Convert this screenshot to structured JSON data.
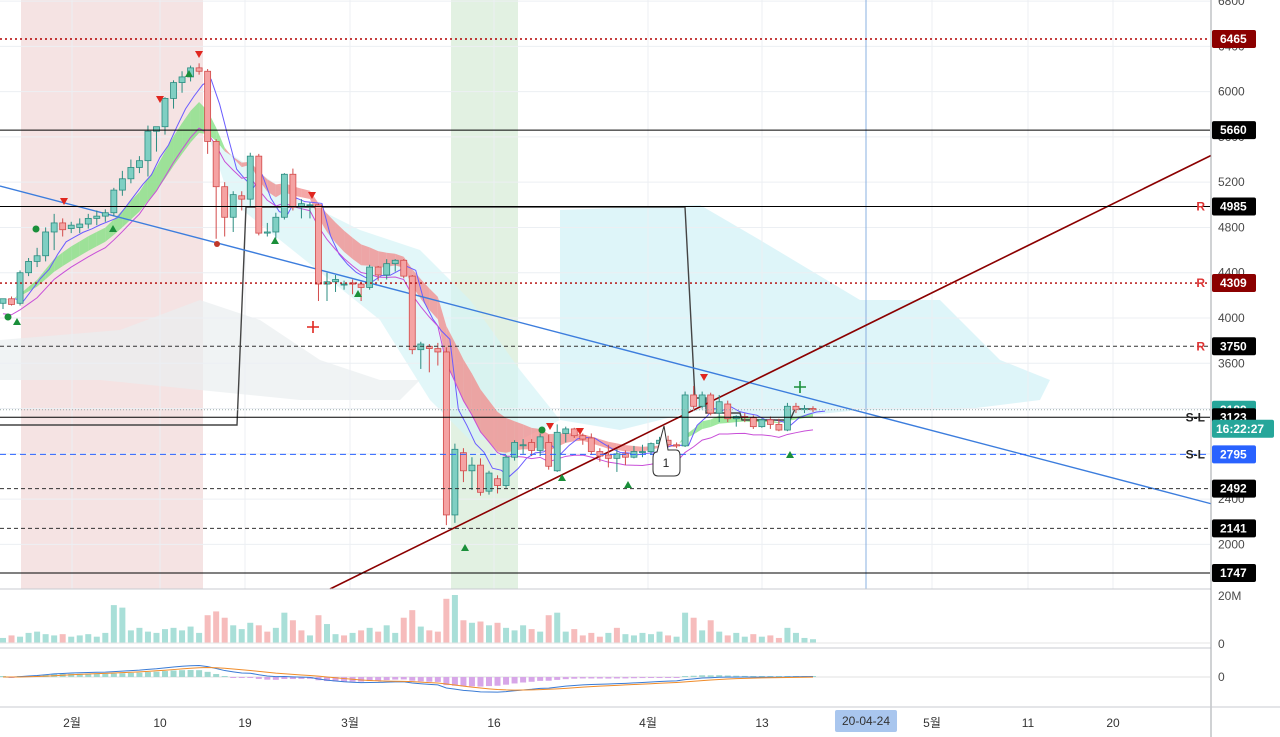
{
  "chart_data": {
    "type": "candlestick",
    "price_axis": {
      "ylim": [
        1800,
        6700
      ],
      "ticks": [
        "6800",
        "6400",
        "6000",
        "5600",
        "5200",
        "4800",
        "4400",
        "4000",
        "3600",
        "3200",
        "2800",
        "2400",
        "2000"
      ]
    },
    "volume_axis": {
      "ticks": [
        "20M",
        "0"
      ]
    },
    "macd_axis": {
      "ticks": [
        "0"
      ]
    },
    "x_labels": [
      "2월",
      "10",
      "19",
      "3월",
      "16",
      "4월",
      "13",
      "5월",
      "11",
      "20"
    ],
    "cursor_date": "20-04-24",
    "last_price": "3189",
    "countdown": "16:22:27",
    "price_tags": [
      {
        "label": "6465",
        "value": 6465,
        "color": "#8b0000",
        "line": "dotted-red"
      },
      {
        "label": "5660",
        "value": 5660,
        "color": "#000000",
        "line": "solid"
      },
      {
        "label": "4985",
        "value": 4985,
        "color": "#000000",
        "line": "solid",
        "marker": "R"
      },
      {
        "label": "4309",
        "value": 4309,
        "color": "#8b0000",
        "line": "dotted-red",
        "marker": "R"
      },
      {
        "label": "3750",
        "value": 3750,
        "color": "#000000",
        "line": "dashed",
        "marker": "R"
      },
      {
        "label": "3189",
        "value": 3189,
        "color": "#26a69a",
        "line": "dotted-gray"
      },
      {
        "label": "3123",
        "value": 3123,
        "color": "#000000",
        "line": "solid",
        "marker": "S-L"
      },
      {
        "label": "2795",
        "value": 2795,
        "color": "#2962ff",
        "line": "dashed-blue",
        "marker": "S-L"
      },
      {
        "label": "2492",
        "value": 2492,
        "color": "#000000",
        "line": "dashed"
      },
      {
        "label": "2141",
        "value": 2141,
        "color": "#000000",
        "line": "dashed"
      },
      {
        "label": "1747",
        "value": 1747,
        "color": "#000000",
        "line": "solid"
      }
    ],
    "candles": [
      [
        4130,
        4170,
        4080,
        4170
      ],
      [
        4170,
        4190,
        4110,
        4120
      ],
      [
        4130,
        4420,
        4110,
        4400
      ],
      [
        4400,
        4530,
        4370,
        4500
      ],
      [
        4500,
        4620,
        4450,
        4550
      ],
      [
        4550,
        4800,
        4500,
        4760
      ],
      [
        4760,
        4920,
        4600,
        4840
      ],
      [
        4840,
        4880,
        4720,
        4780
      ],
      [
        4790,
        4850,
        4750,
        4820
      ],
      [
        4800,
        4880,
        4750,
        4830
      ],
      [
        4830,
        4920,
        4790,
        4880
      ],
      [
        4880,
        4950,
        4820,
        4900
      ],
      [
        4900,
        4960,
        4850,
        4930
      ],
      [
        4930,
        5150,
        4900,
        5130
      ],
      [
        5130,
        5300,
        5080,
        5230
      ],
      [
        5230,
        5400,
        5190,
        5330
      ],
      [
        5330,
        5430,
        5280,
        5390
      ],
      [
        5390,
        5700,
        5250,
        5650
      ],
      [
        5650,
        5690,
        5470,
        5690
      ],
      [
        5690,
        5950,
        5620,
        5940
      ],
      [
        5940,
        6100,
        5850,
        6080
      ],
      [
        6080,
        6180,
        5990,
        6130
      ],
      [
        6130,
        6230,
        6090,
        6210
      ],
      [
        6210,
        6250,
        6150,
        6180
      ],
      [
        6180,
        6200,
        5450,
        5560
      ],
      [
        5560,
        5580,
        4700,
        5160
      ],
      [
        5160,
        5200,
        4720,
        4890
      ],
      [
        4890,
        5120,
        4760,
        5090
      ],
      [
        5080,
        5120,
        4950,
        5050
      ],
      [
        5050,
        5460,
        4990,
        5430
      ],
      [
        5430,
        5450,
        4730,
        4750
      ],
      [
        4750,
        4840,
        4720,
        4760
      ],
      [
        4760,
        4930,
        4700,
        4890
      ],
      [
        4890,
        5280,
        4870,
        5270
      ],
      [
        5270,
        5320,
        4950,
        4980
      ],
      [
        4980,
        5050,
        4880,
        5010
      ],
      [
        5000,
        5020,
        4880,
        5000
      ],
      [
        5000,
        5010,
        4150,
        4300
      ],
      [
        4300,
        4400,
        4150,
        4320
      ],
      [
        4320,
        4380,
        4230,
        4340
      ],
      [
        4300,
        4330,
        4250,
        4300
      ],
      [
        4310,
        4340,
        4210,
        4300
      ],
      [
        4300,
        4320,
        4150,
        4270
      ],
      [
        4270,
        4470,
        4250,
        4450
      ],
      [
        4450,
        4460,
        4330,
        4380
      ],
      [
        4380,
        4520,
        4340,
        4480
      ],
      [
        4480,
        4520,
        4410,
        4510
      ],
      [
        4510,
        4520,
        4350,
        4370
      ],
      [
        4370,
        4380,
        3680,
        3720
      ],
      [
        3720,
        3790,
        3550,
        3770
      ],
      [
        3750,
        3770,
        3520,
        3730
      ],
      [
        3730,
        3780,
        3580,
        3700
      ],
      [
        3700,
        3740,
        2170,
        2260
      ],
      [
        2260,
        2890,
        2190,
        2840
      ],
      [
        2810,
        2850,
        2550,
        2650
      ],
      [
        2650,
        2770,
        2480,
        2700
      ],
      [
        2700,
        2760,
        2430,
        2460
      ],
      [
        2470,
        2650,
        2440,
        2630
      ],
      [
        2580,
        2610,
        2450,
        2520
      ],
      [
        2520,
        2790,
        2500,
        2770
      ],
      [
        2770,
        2920,
        2740,
        2900
      ],
      [
        2880,
        2930,
        2800,
        2880
      ],
      [
        2900,
        2930,
        2780,
        2830
      ],
      [
        2830,
        2980,
        2780,
        2950
      ],
      [
        2900,
        2970,
        2660,
        2690
      ],
      [
        2650,
        3060,
        2640,
        2990
      ],
      [
        2980,
        3040,
        2900,
        3020
      ],
      [
        3020,
        3030,
        2940,
        2960
      ],
      [
        2960,
        2980,
        2880,
        2930
      ],
      [
        2940,
        2980,
        2790,
        2820
      ],
      [
        2820,
        2850,
        2730,
        2780
      ],
      [
        2790,
        2880,
        2680,
        2760
      ],
      [
        2760,
        2840,
        2640,
        2800
      ],
      [
        2800,
        2830,
        2700,
        2770
      ],
      [
        2770,
        2870,
        2760,
        2820
      ],
      [
        2820,
        2880,
        2770,
        2820
      ],
      [
        2820,
        2900,
        2790,
        2890
      ],
      [
        2890,
        2950,
        2840,
        2920
      ],
      [
        2920,
        2960,
        2860,
        2880
      ],
      [
        2880,
        2900,
        2850,
        2870
      ],
      [
        2870,
        3350,
        2860,
        3320
      ],
      [
        3320,
        3400,
        3180,
        3220
      ],
      [
        3220,
        3350,
        3200,
        3320
      ],
      [
        3320,
        3340,
        3140,
        3160
      ],
      [
        3160,
        3320,
        3080,
        3260
      ],
      [
        3240,
        3270,
        3080,
        3110
      ],
      [
        3110,
        3140,
        3040,
        3130
      ],
      [
        3130,
        3160,
        3080,
        3120
      ],
      [
        3120,
        3140,
        3020,
        3040
      ],
      [
        3040,
        3110,
        3030,
        3100
      ],
      [
        3100,
        3130,
        3020,
        3060
      ],
      [
        3060,
        3110,
        3000,
        3010
      ],
      [
        3010,
        3250,
        3000,
        3220
      ],
      [
        3220,
        3250,
        3160,
        3190
      ],
      [
        3190,
        3230,
        3160,
        3200
      ],
      [
        3200,
        3220,
        3170,
        3189
      ]
    ],
    "volume": [
      [
        4,
        1
      ],
      [
        6,
        0
      ],
      [
        5,
        1
      ],
      [
        8,
        1
      ],
      [
        9,
        1
      ],
      [
        7,
        1
      ],
      [
        6,
        1
      ],
      [
        7,
        0
      ],
      [
        5,
        1
      ],
      [
        6,
        1
      ],
      [
        7,
        1
      ],
      [
        5,
        1
      ],
      [
        8,
        1
      ],
      [
        30,
        1
      ],
      [
        28,
        1
      ],
      [
        10,
        1
      ],
      [
        12,
        1
      ],
      [
        9,
        1
      ],
      [
        8,
        1
      ],
      [
        11,
        1
      ],
      [
        12,
        1
      ],
      [
        10,
        1
      ],
      [
        13,
        1
      ],
      [
        8,
        1
      ],
      [
        22,
        0
      ],
      [
        25,
        0
      ],
      [
        20,
        0
      ],
      [
        14,
        1
      ],
      [
        11,
        1
      ],
      [
        16,
        1
      ],
      [
        14,
        0
      ],
      [
        9,
        0
      ],
      [
        12,
        1
      ],
      [
        24,
        1
      ],
      [
        18,
        0
      ],
      [
        10,
        0
      ],
      [
        6,
        1
      ],
      [
        22,
        0
      ],
      [
        15,
        1
      ],
      [
        7,
        1
      ],
      [
        6,
        0
      ],
      [
        8,
        1
      ],
      [
        10,
        0
      ],
      [
        12,
        1
      ],
      [
        9,
        0
      ],
      [
        14,
        1
      ],
      [
        8,
        1
      ],
      [
        20,
        0
      ],
      [
        26,
        0
      ],
      [
        13,
        1
      ],
      [
        10,
        0
      ],
      [
        9,
        0
      ],
      [
        35,
        0
      ],
      [
        38,
        1
      ],
      [
        18,
        0
      ],
      [
        16,
        1
      ],
      [
        17,
        0
      ],
      [
        14,
        1
      ],
      [
        16,
        0
      ],
      [
        12,
        1
      ],
      [
        10,
        1
      ],
      [
        14,
        1
      ],
      [
        11,
        0
      ],
      [
        9,
        1
      ],
      [
        22,
        0
      ],
      [
        24,
        1
      ],
      [
        9,
        1
      ],
      [
        11,
        0
      ],
      [
        6,
        0
      ],
      [
        8,
        0
      ],
      [
        5,
        0
      ],
      [
        8,
        1
      ],
      [
        12,
        0
      ],
      [
        7,
        1
      ],
      [
        6,
        1
      ],
      [
        8,
        1
      ],
      [
        7,
        1
      ],
      [
        9,
        1
      ],
      [
        6,
        0
      ],
      [
        5,
        1
      ],
      [
        24,
        1
      ],
      [
        20,
        0
      ],
      [
        10,
        1
      ],
      [
        18,
        0
      ],
      [
        9,
        1
      ],
      [
        6,
        0
      ],
      [
        8,
        1
      ],
      [
        5,
        1
      ],
      [
        7,
        0
      ],
      [
        5,
        1
      ],
      [
        6,
        0
      ],
      [
        4,
        0
      ],
      [
        12,
        1
      ],
      [
        8,
        1
      ],
      [
        4,
        1
      ],
      [
        3,
        1
      ]
    ]
  },
  "icons": {
    "up_marker": "triangle-up",
    "down_marker": "triangle-down",
    "cross": "plus"
  }
}
